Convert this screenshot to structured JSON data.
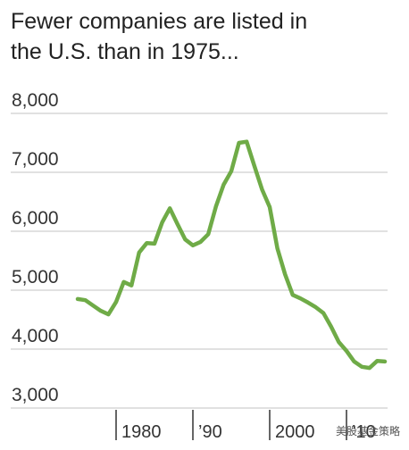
{
  "chart_data": {
    "type": "line",
    "title": [
      "Fewer companies are listed in",
      "the U.S. than in 1975..."
    ],
    "x": [
      1975,
      1976,
      1977,
      1978,
      1979,
      1980,
      1981,
      1982,
      1983,
      1984,
      1985,
      1986,
      1987,
      1988,
      1989,
      1990,
      1991,
      1992,
      1993,
      1994,
      1995,
      1996,
      1997,
      1998,
      1999,
      2000,
      2001,
      2002,
      2003,
      2004,
      2005,
      2006,
      2007,
      2008,
      2009,
      2010,
      2011,
      2012,
      2013,
      2014,
      2015
    ],
    "values": [
      4850,
      4830,
      4740,
      4650,
      4590,
      4800,
      5140,
      5080,
      5640,
      5800,
      5790,
      6150,
      6390,
      6120,
      5860,
      5760,
      5820,
      5950,
      6420,
      6790,
      7020,
      7500,
      7520,
      7110,
      6710,
      6410,
      5710,
      5270,
      4920,
      4860,
      4790,
      4710,
      4610,
      4380,
      4120,
      3970,
      3790,
      3700,
      3680,
      3800,
      3790
    ],
    "color": "#6fab47",
    "xlim": [
      1975,
      2015
    ],
    "xticks": [
      1980,
      {
        "value": 1990,
        "label": "’90"
      },
      2000,
      {
        "value": 2010,
        "label": "’10"
      }
    ],
    "ylim": [
      3000,
      8000
    ],
    "yticks": [
      {
        "value": 3000,
        "label": "3,000"
      },
      {
        "value": 4000,
        "label": "4,000"
      },
      {
        "value": 5000,
        "label": "5,000"
      },
      {
        "value": 6000,
        "label": "6,000"
      },
      {
        "value": 7000,
        "label": "7,000"
      },
      {
        "value": 8000,
        "label": "8,000"
      }
    ],
    "grid": true,
    "watermark": "美股基金策略"
  }
}
